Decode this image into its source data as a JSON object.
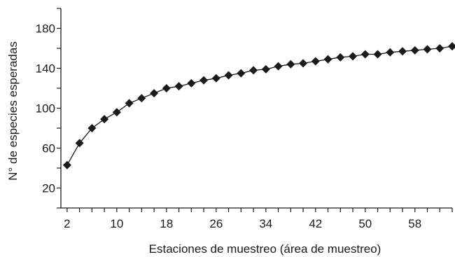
{
  "chart_data": {
    "type": "line",
    "xlabel": "Estaciones de muestreo (área de muestreo)",
    "ylabel": "N° de especies esperadas",
    "xlim": [
      1,
      64
    ],
    "ylim": [
      0,
      200
    ],
    "x_ticks": [
      2,
      10,
      18,
      26,
      34,
      42,
      50,
      58
    ],
    "y_ticks": [
      20,
      60,
      100,
      140,
      180
    ],
    "grid": false,
    "marker": "diamond",
    "line_color": "#1a1a1a",
    "series": [
      {
        "x": [
          2,
          4,
          6,
          8,
          10,
          12,
          14,
          16,
          18,
          20,
          22,
          24,
          26,
          28,
          30,
          32,
          34,
          36,
          38,
          40,
          42,
          44,
          46,
          48,
          50,
          52,
          54,
          56,
          58,
          60,
          62,
          64
        ],
        "values": [
          43,
          65,
          80,
          89,
          96,
          105,
          110,
          115,
          120,
          122,
          125,
          128,
          130,
          133,
          135,
          138,
          139,
          142,
          144,
          145,
          147,
          149,
          151,
          152,
          154,
          154,
          156,
          157,
          158,
          159,
          160,
          162
        ]
      }
    ]
  }
}
